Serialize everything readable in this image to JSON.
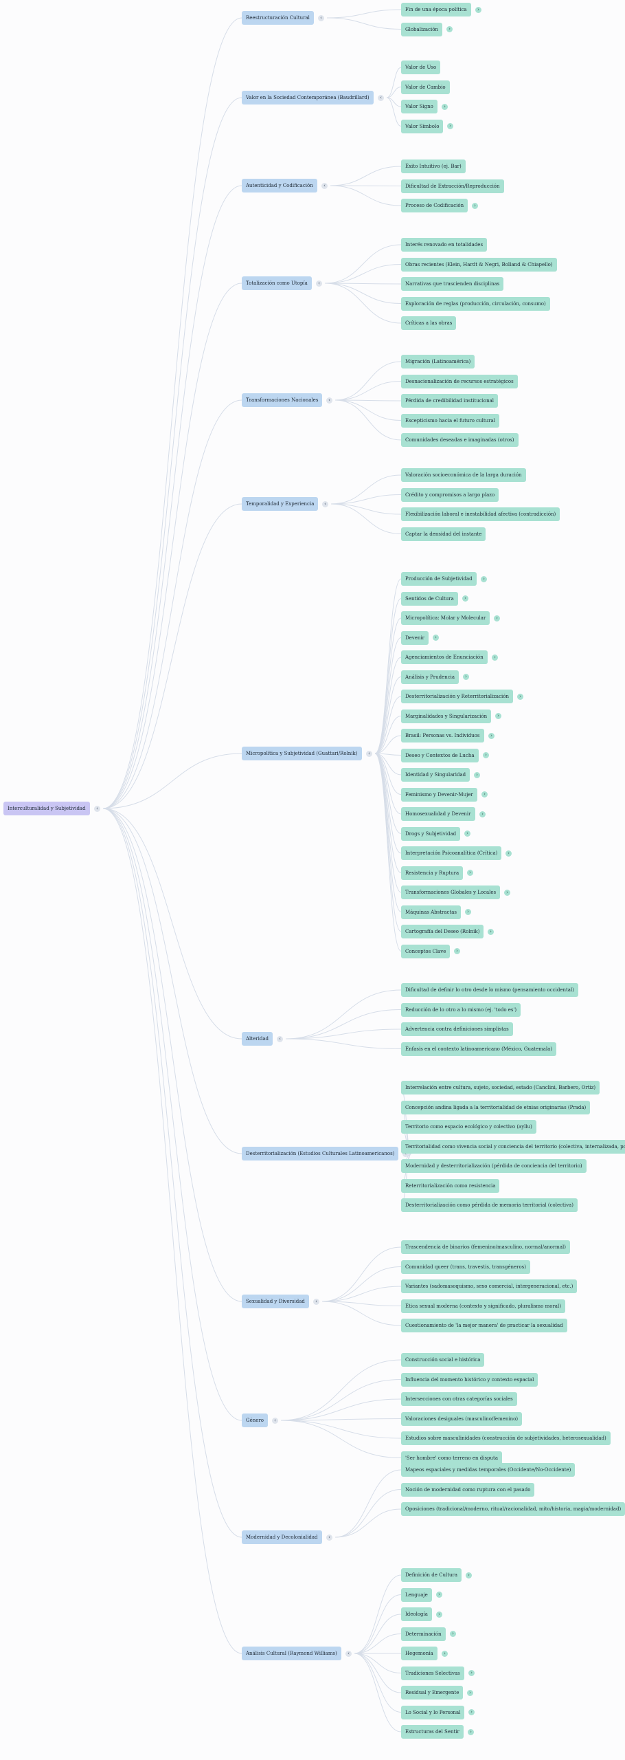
{
  "root": {
    "label": "Interculturalidad y Subjetividad",
    "toggle": "‹"
  },
  "categories": [
    {
      "label": "Reestructuración Cultural",
      "toggle": "‹",
      "items": [
        {
          "label": "Fin de una época política",
          "toggle": "›"
        },
        {
          "label": "Globalización",
          "toggle": "›"
        }
      ]
    },
    {
      "label": "Valor en la Sociedad Contemporánea (Baudrillard)",
      "toggle": "‹",
      "items": [
        {
          "label": "Valor de Uso"
        },
        {
          "label": "Valor de Cambio"
        },
        {
          "label": "Valor Signo",
          "toggle": "›"
        },
        {
          "label": "Valor Símbolo",
          "toggle": "›"
        }
      ]
    },
    {
      "label": "Autenticidad y Codificación",
      "toggle": "‹",
      "items": [
        {
          "label": "Éxito Intuitivo (ej. Bar)"
        },
        {
          "label": "Dificultad de Extracción/Reproducción"
        },
        {
          "label": "Proceso de Codificación",
          "toggle": "›"
        }
      ]
    },
    {
      "label": "Totalización como Utopía",
      "toggle": "‹",
      "items": [
        {
          "label": "Interés renovado en totalidades"
        },
        {
          "label": "Obras recientes (Klein, Hardt & Negri, Bolland & Chiapello)"
        },
        {
          "label": "Narrativas que trascienden disciplinas"
        },
        {
          "label": "Exploración de reglas (producción, circulación, consumo)"
        },
        {
          "label": "Críticas a las obras"
        }
      ]
    },
    {
      "label": "Transformaciones Nacionales",
      "toggle": "‹",
      "items": [
        {
          "label": "Migración (Latinoamérica)"
        },
        {
          "label": "Desnacionalización de recursos estratégicos"
        },
        {
          "label": "Pérdida de credibilidad institucional"
        },
        {
          "label": "Escepticismo hacia el futuro cultural"
        },
        {
          "label": "Comunidades deseadas e imaginadas (otros)"
        }
      ]
    },
    {
      "label": "Temporalidad y Experiencia",
      "toggle": "‹",
      "items": [
        {
          "label": "Valoración socioeconómica de la larga duración"
        },
        {
          "label": "Crédito y compromisos a largo plazo"
        },
        {
          "label": "Flexibilización laboral e inestabilidad afectiva (contradicción)"
        },
        {
          "label": "Captar la densidad del instante"
        }
      ]
    },
    {
      "label": "Micropolítica y Subjetividad (Guattari/Rolnik)",
      "toggle": "‹",
      "items": [
        {
          "label": "Producción de Subjetividad",
          "toggle": "›"
        },
        {
          "label": "Sentidos de Cultura",
          "toggle": "›"
        },
        {
          "label": "Micropolítica: Molar y Molecular",
          "toggle": "›"
        },
        {
          "label": "Devenir",
          "toggle": "›"
        },
        {
          "label": "Agenciamientos de Enunciación",
          "toggle": "›"
        },
        {
          "label": "Análisis y Prudencia",
          "toggle": "›"
        },
        {
          "label": "Desterritorialización y Reterritorialización",
          "toggle": "›"
        },
        {
          "label": "Marginalidades y Singularización",
          "toggle": "›"
        },
        {
          "label": "Brasil: Personas vs. Individuos",
          "toggle": "›"
        },
        {
          "label": "Deseo y Contextos de Lucha",
          "toggle": "›"
        },
        {
          "label": "Identidad y Singularidad",
          "toggle": "›"
        },
        {
          "label": "Feminismo y Devenir-Mujer",
          "toggle": "›"
        },
        {
          "label": "Homosexualidad y Devenir",
          "toggle": "›"
        },
        {
          "label": "Drogs y Subjetividad",
          "toggle": "›"
        },
        {
          "label": "Interpretación Psicoanalítica (Crítica)",
          "toggle": "›"
        },
        {
          "label": "Resistencia y Ruptura",
          "toggle": "›"
        },
        {
          "label": "Transformaciones Globales y Locales",
          "toggle": "›"
        },
        {
          "label": "Máquinas Abstractas",
          "toggle": "›"
        },
        {
          "label": "Cartografía del Deseo (Rolnik)",
          "toggle": "›"
        },
        {
          "label": "Conceptos Clave",
          "toggle": "›"
        }
      ]
    },
    {
      "label": "Alteridad",
      "toggle": "‹",
      "items": [
        {
          "label": "Dificultad de definir lo otro desde lo mismo (pensamiento occidental)"
        },
        {
          "label": "Reducción de lo otro a lo mismo (ej. 'todo es')"
        },
        {
          "label": "Advertencia contra definiciones simplistas"
        },
        {
          "label": "Énfasis en el contexto latinoamericano (México, Guatemala)"
        }
      ]
    },
    {
      "label": "Desterritorialización (Estudios Culturales Latinoamericanos)",
      "toggle": "‹",
      "items": [
        {
          "label": "Interrelación entre cultura, sujeto, sociedad, estado (Canclini, Barbero, Ortiz)"
        },
        {
          "label": "Concepción andina ligada a la territorialidad de etnias originarias (Prada)"
        },
        {
          "label": "Territorio como espacio ecológico y colectivo (ayllu)"
        },
        {
          "label": "Territorialidad como vivencia social y conciencia del territorio (colectiva, internalizada, poder)"
        },
        {
          "label": "Modernidad y desterritorialización (pérdida de conciencia del territorio)"
        },
        {
          "label": "Reterritorialización como resistencia"
        },
        {
          "label": "Desterritorialización como pérdida de memoria territorial (colectiva)"
        }
      ]
    },
    {
      "label": "Sexualidad y Diversidad",
      "toggle": "‹",
      "items": [
        {
          "label": "Trascendencia de binarios (femenino/masculino, normal/anormal)"
        },
        {
          "label": "Comunidad queer (trans, travestis, transgéneros)"
        },
        {
          "label": "Variantes (sadomasoquismo, sexo comercial, intergeneracional, etc.)"
        },
        {
          "label": "Ética sexual moderna (contexto y significado, pluralismo moral)"
        },
        {
          "label": "Cuestionamiento de 'la mejor manera' de practicar la sexualidad"
        }
      ]
    },
    {
      "label": "Género",
      "toggle": "‹",
      "items": [
        {
          "label": "Construcción social e histórica"
        },
        {
          "label": "Influencia del momento histórico y contexto espacial"
        },
        {
          "label": "Intersecciones con otras categorías sociales"
        },
        {
          "label": "Valoraciones desiguales (masculino/femenino)"
        },
        {
          "label": "Estudios sobre masculinidades (construcción de subjetividades, heterosexualidad)"
        },
        {
          "label": "'Ser hombre' como terreno en disputa"
        }
      ]
    },
    {
      "label": "Modernidad y Decolonialidad",
      "toggle": "‹",
      "items": [
        {
          "label": "Mapeos espaciales y medidas temporales (Occidente/No-Occidente)"
        },
        {
          "label": "Noción de modernidad como ruptura con el pasado"
        },
        {
          "label": "Oposiciones (tradicional/moderno, ritual/racionalidad, mito/historia, magia/modernidad)"
        }
      ]
    },
    {
      "label": "Análisis Cultural (Raymond Williams)",
      "toggle": "‹",
      "items": [
        {
          "label": "Definición de Cultura",
          "toggle": "›"
        },
        {
          "label": "Lenguaje",
          "toggle": "›"
        },
        {
          "label": "Ideología",
          "toggle": "›"
        },
        {
          "label": "Determinación",
          "toggle": "›"
        },
        {
          "label": "Hegemonía",
          "toggle": "›"
        },
        {
          "label": "Tradiciones Selectivas",
          "toggle": "›"
        },
        {
          "label": "Residual y Emergente",
          "toggle": "›"
        },
        {
          "label": "Lo Social y lo Personal",
          "toggle": "›"
        },
        {
          "label": "Estructuras del Sentir",
          "toggle": "›"
        }
      ]
    }
  ]
}
